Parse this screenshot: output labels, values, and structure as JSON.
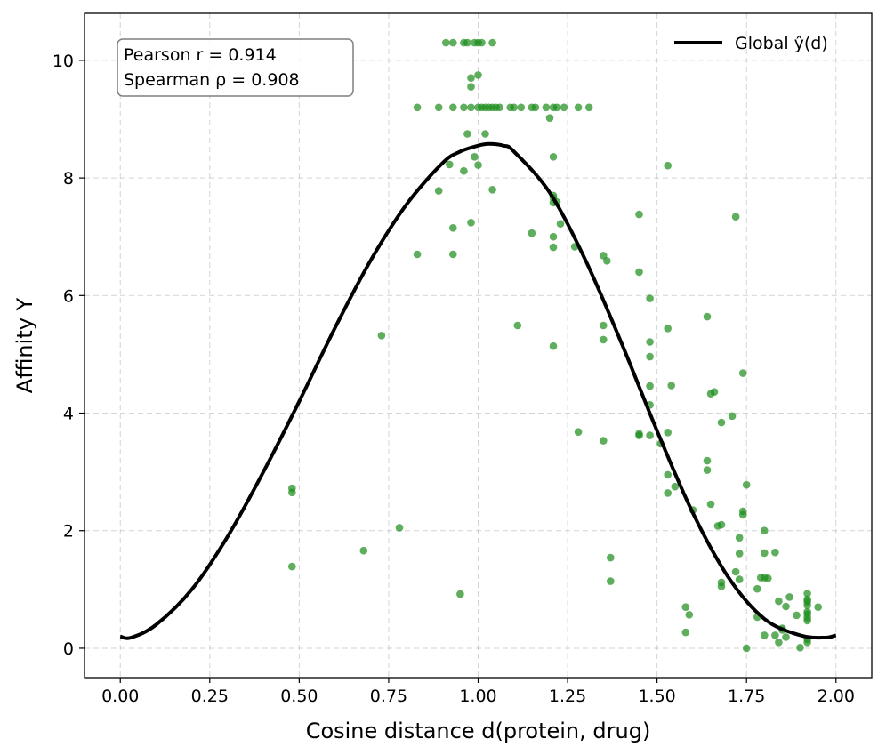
{
  "chart_data": {
    "type": "scatter",
    "title": "",
    "xlabel": "Cosine distance d(protein, drug)",
    "ylabel": "Affinity Y",
    "xlim": [
      -0.1,
      2.1
    ],
    "ylim": [
      -0.5,
      10.8
    ],
    "x_ticks": [
      "0.00",
      "0.25",
      "0.50",
      "0.75",
      "1.00",
      "1.25",
      "1.50",
      "1.75",
      "2.00"
    ],
    "y_ticks": [
      "0",
      "2",
      "4",
      "6",
      "8",
      "10"
    ],
    "grid": true,
    "legend": {
      "placement": "top-right",
      "entries": [
        "Global ŷ(d)"
      ]
    },
    "annotation": {
      "placement": "top-left",
      "lines": [
        "Pearson r = 0.914",
        "Spearman ρ = 0.908"
      ]
    },
    "colors": {
      "points": "#1a8c1a",
      "curve": "#000000"
    },
    "series": [
      {
        "name": "Global ŷ(d)",
        "kind": "line",
        "x": [
          0.0,
          0.03,
          0.1,
          0.2,
          0.3,
          0.4,
          0.5,
          0.6,
          0.7,
          0.8,
          0.9,
          0.95,
          1.0,
          1.03,
          1.07,
          1.1,
          1.2,
          1.3,
          1.4,
          1.5,
          1.6,
          1.7,
          1.8,
          1.9,
          1.97,
          2.0
        ],
        "y": [
          0.2,
          0.18,
          0.4,
          1.0,
          1.9,
          3.0,
          4.2,
          5.45,
          6.6,
          7.55,
          8.25,
          8.45,
          8.55,
          8.58,
          8.55,
          8.45,
          7.75,
          6.6,
          5.2,
          3.7,
          2.3,
          1.2,
          0.5,
          0.22,
          0.18,
          0.22
        ]
      },
      {
        "name": "",
        "kind": "scatter",
        "points": [
          [
            0.91,
            10.3
          ],
          [
            0.93,
            10.3
          ],
          [
            0.96,
            10.3
          ],
          [
            0.97,
            10.3
          ],
          [
            0.99,
            10.3
          ],
          [
            1.0,
            10.3
          ],
          [
            1.01,
            10.3
          ],
          [
            1.04,
            10.3
          ],
          [
            0.98,
            9.7
          ],
          [
            1.0,
            9.75
          ],
          [
            0.98,
            9.55
          ],
          [
            0.83,
            9.2
          ],
          [
            0.89,
            9.2
          ],
          [
            0.93,
            9.2
          ],
          [
            0.96,
            9.2
          ],
          [
            0.98,
            9.2
          ],
          [
            1.0,
            9.2
          ],
          [
            1.01,
            9.2
          ],
          [
            1.02,
            9.2
          ],
          [
            1.03,
            9.2
          ],
          [
            1.04,
            9.2
          ],
          [
            1.05,
            9.2
          ],
          [
            1.06,
            9.2
          ],
          [
            1.09,
            9.2
          ],
          [
            1.1,
            9.2
          ],
          [
            1.12,
            9.2
          ],
          [
            1.15,
            9.2
          ],
          [
            1.16,
            9.2
          ],
          [
            1.19,
            9.2
          ],
          [
            1.21,
            9.2
          ],
          [
            1.22,
            9.2
          ],
          [
            1.24,
            9.2
          ],
          [
            1.28,
            9.2
          ],
          [
            1.31,
            9.2
          ],
          [
            1.2,
            9.02
          ],
          [
            0.97,
            8.75
          ],
          [
            1.02,
            8.75
          ],
          [
            0.92,
            8.23
          ],
          [
            0.96,
            8.12
          ],
          [
            0.99,
            8.36
          ],
          [
            1.0,
            8.22
          ],
          [
            1.21,
            8.36
          ],
          [
            1.53,
            8.21
          ],
          [
            0.89,
            7.78
          ],
          [
            1.04,
            7.8
          ],
          [
            1.21,
            7.66
          ],
          [
            1.21,
            7.58
          ],
          [
            1.22,
            7.59
          ],
          [
            1.21,
            7.7
          ],
          [
            0.98,
            7.24
          ],
          [
            0.93,
            7.15
          ],
          [
            1.15,
            7.06
          ],
          [
            1.21,
            7.0
          ],
          [
            1.23,
            7.22
          ],
          [
            1.45,
            7.38
          ],
          [
            1.72,
            7.34
          ],
          [
            1.21,
            6.82
          ],
          [
            1.27,
            6.83
          ],
          [
            0.83,
            6.7
          ],
          [
            0.93,
            6.7
          ],
          [
            1.35,
            6.68
          ],
          [
            1.36,
            6.59
          ],
          [
            1.45,
            6.4
          ],
          [
            1.48,
            5.95
          ],
          [
            1.64,
            5.64
          ],
          [
            1.11,
            5.49
          ],
          [
            1.35,
            5.49
          ],
          [
            1.53,
            5.44
          ],
          [
            0.73,
            5.32
          ],
          [
            1.35,
            5.25
          ],
          [
            1.48,
            5.21
          ],
          [
            1.21,
            5.14
          ],
          [
            1.48,
            4.96
          ],
          [
            1.74,
            4.68
          ],
          [
            1.48,
            4.46
          ],
          [
            1.54,
            4.47
          ],
          [
            1.66,
            4.36
          ],
          [
            1.65,
            4.33
          ],
          [
            1.48,
            4.14
          ],
          [
            1.71,
            3.95
          ],
          [
            1.68,
            3.84
          ],
          [
            1.28,
            3.68
          ],
          [
            1.45,
            3.65
          ],
          [
            1.45,
            3.62
          ],
          [
            1.48,
            3.62
          ],
          [
            1.53,
            3.67
          ],
          [
            1.35,
            3.53
          ],
          [
            1.51,
            3.48
          ],
          [
            1.64,
            3.19
          ],
          [
            1.64,
            3.03
          ],
          [
            1.53,
            2.95
          ],
          [
            1.75,
            2.78
          ],
          [
            1.55,
            2.75
          ],
          [
            0.48,
            2.72
          ],
          [
            0.48,
            2.65
          ],
          [
            1.53,
            2.64
          ],
          [
            1.65,
            2.45
          ],
          [
            1.6,
            2.35
          ],
          [
            1.74,
            2.33
          ],
          [
            1.74,
            2.27
          ],
          [
            1.67,
            2.08
          ],
          [
            1.68,
            2.1
          ],
          [
            0.78,
            2.05
          ],
          [
            1.8,
            2.0
          ],
          [
            1.73,
            1.88
          ],
          [
            0.68,
            1.66
          ],
          [
            1.73,
            1.61
          ],
          [
            1.8,
            1.62
          ],
          [
            1.83,
            1.63
          ],
          [
            1.37,
            1.54
          ],
          [
            0.48,
            1.39
          ],
          [
            1.72,
            1.3
          ],
          [
            1.79,
            1.2
          ],
          [
            1.8,
            1.2
          ],
          [
            1.81,
            1.19
          ],
          [
            1.73,
            1.17
          ],
          [
            1.37,
            1.14
          ],
          [
            1.68,
            1.12
          ],
          [
            1.68,
            1.05
          ],
          [
            1.78,
            1.01
          ],
          [
            0.95,
            0.92
          ],
          [
            1.92,
            0.93
          ],
          [
            1.87,
            0.87
          ],
          [
            1.92,
            0.83
          ],
          [
            1.84,
            0.8
          ],
          [
            1.92,
            0.79
          ],
          [
            1.92,
            0.73
          ],
          [
            1.86,
            0.71
          ],
          [
            1.95,
            0.7
          ],
          [
            1.58,
            0.7
          ],
          [
            1.92,
            0.62
          ],
          [
            1.92,
            0.58
          ],
          [
            1.59,
            0.57
          ],
          [
            1.89,
            0.56
          ],
          [
            1.92,
            0.52
          ],
          [
            1.78,
            0.53
          ],
          [
            1.92,
            0.47
          ],
          [
            1.85,
            0.34
          ],
          [
            1.85,
            0.31
          ],
          [
            1.58,
            0.27
          ],
          [
            1.8,
            0.22
          ],
          [
            1.83,
            0.22
          ],
          [
            1.86,
            0.19
          ],
          [
            1.92,
            0.15
          ],
          [
            1.92,
            0.1
          ],
          [
            1.84,
            0.1
          ],
          [
            1.75,
            0.0
          ],
          [
            1.9,
            0.01
          ]
        ]
      }
    ]
  }
}
